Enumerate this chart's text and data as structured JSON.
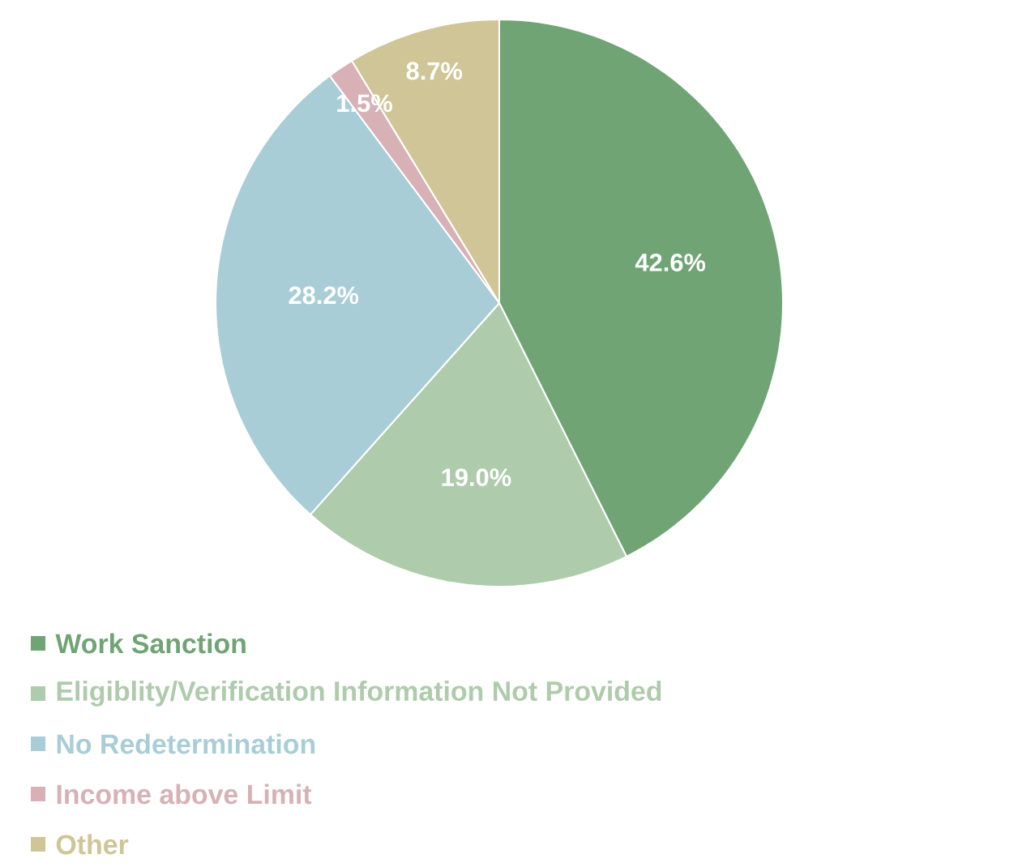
{
  "chart_data": {
    "type": "pie",
    "categories": [
      "Work Sanction",
      "Eligiblity/Verification Information Not Provided",
      "No Redetermination",
      "Income above Limit",
      "Other"
    ],
    "values": [
      42.6,
      19.0,
      28.2,
      1.5,
      8.7
    ],
    "value_labels": [
      "42.6%",
      "19.0%",
      "28.2%",
      "1.5%",
      "8.7%"
    ],
    "colors": [
      "#70a475",
      "#aecbab",
      "#a8cdd7",
      "#d7b1b6",
      "#cfc597"
    ],
    "legend": "bottom left"
  }
}
